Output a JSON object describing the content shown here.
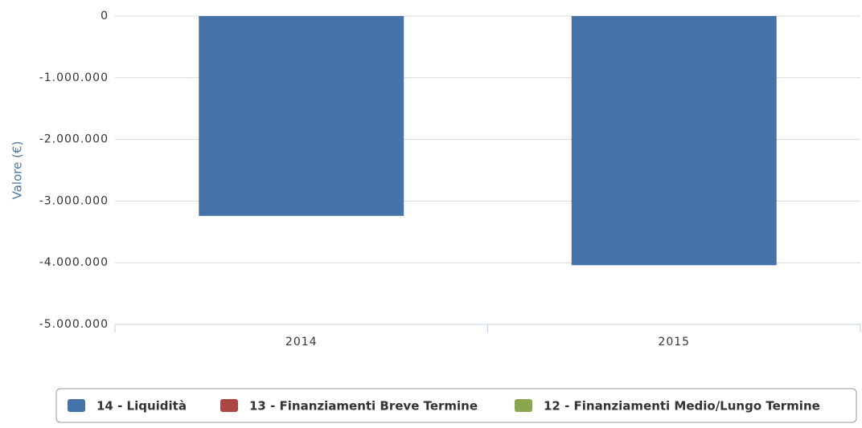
{
  "chart_data": {
    "type": "bar",
    "y_axis_label": "Valore (€)",
    "categories": [
      "2014",
      "2015"
    ],
    "series": [
      {
        "name": "14 - Liquidità",
        "color": "#4572a7",
        "values": [
          -3240000,
          -4040000
        ]
      },
      {
        "name": "13 - Finanziamenti Breve Termine",
        "color": "#aa4643",
        "values": [
          null,
          null
        ]
      },
      {
        "name": "12 - Finanziamenti Medio/Lungo Termine",
        "color": "#89a54e",
        "values": [
          null,
          null
        ]
      }
    ],
    "ylim": [
      -5000000,
      0
    ],
    "yticks": [
      0,
      {
        "value": -1000000,
        "label": "-1.000.000"
      },
      {
        "value": -2000000,
        "label": "-2.000.000"
      },
      {
        "value": -3000000,
        "label": "-3.000.000"
      },
      {
        "value": -4000000,
        "label": "-4.000.000"
      },
      {
        "value": -5000000,
        "label": "-5.000.000"
      }
    ],
    "grid": true,
    "legend": "bottom"
  }
}
